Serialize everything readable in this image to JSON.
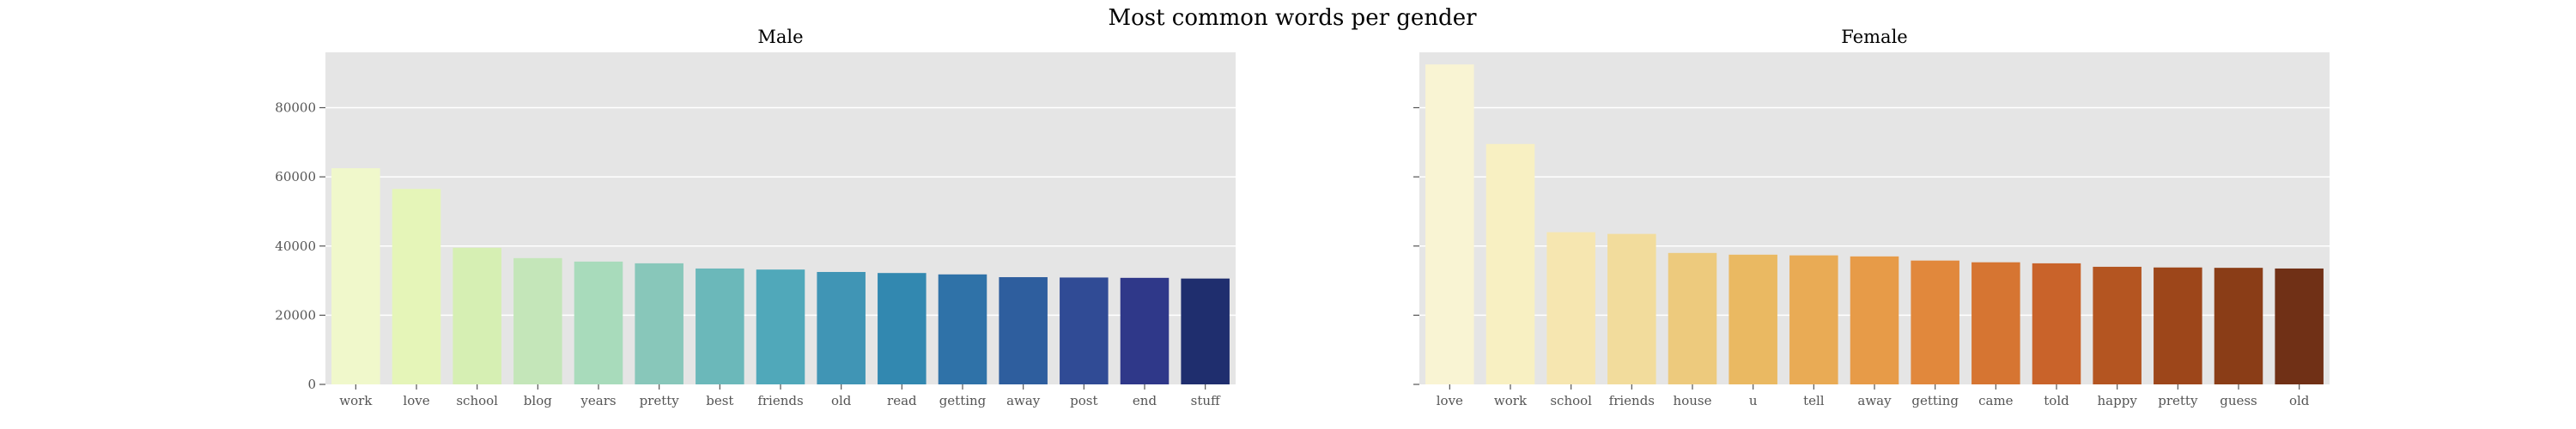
{
  "figure": {
    "suptitle": "Most common words per gender"
  },
  "chart_data": [
    {
      "type": "bar",
      "title": "Male",
      "xlabel": "",
      "ylabel": "",
      "ylim": [
        0,
        96000
      ],
      "yticks": [
        0,
        20000,
        40000,
        60000,
        80000
      ],
      "grid": true,
      "palette": "YlGnBu",
      "categories": [
        "work",
        "love",
        "school",
        "blog",
        "years",
        "pretty",
        "best",
        "friends",
        "old",
        "read",
        "getting",
        "away",
        "post",
        "end",
        "stuff"
      ],
      "values": [
        62500,
        56500,
        39500,
        36500,
        35500,
        35000,
        33500,
        33200,
        32500,
        32200,
        31800,
        31000,
        30900,
        30800,
        30600
      ],
      "colors": [
        "#f0f8cb",
        "#e5f5b8",
        "#d6efb3",
        "#c4e6b9",
        "#a8dbbb",
        "#88c7ba",
        "#6bb8ba",
        "#50a8ba",
        "#4095b5",
        "#3288b0",
        "#2f72a8",
        "#2e5e9e",
        "#304b95",
        "#2f3889",
        "#1f2e6e"
      ]
    },
    {
      "type": "bar",
      "title": "Female",
      "xlabel": "",
      "ylabel": "",
      "ylim": [
        0,
        96000
      ],
      "yticks": [
        0,
        20000,
        40000,
        60000,
        80000
      ],
      "grid": true,
      "palette": "YlOrBr",
      "categories": [
        "love",
        "work",
        "school",
        "friends",
        "house",
        "u",
        "tell",
        "away",
        "getting",
        "came",
        "told",
        "happy",
        "pretty",
        "guess",
        "old"
      ],
      "values": [
        92500,
        69500,
        44000,
        43500,
        38000,
        37500,
        37300,
        37000,
        35800,
        35300,
        35000,
        34000,
        33800,
        33700,
        33500
      ],
      "colors": [
        "#f9f4d3",
        "#f8f0c2",
        "#f6e6b0",
        "#f2dc9c",
        "#edca7d",
        "#eab962",
        "#e9ab55",
        "#e79b48",
        "#e1883c",
        "#d67532",
        "#c9632a",
        "#b45521",
        "#9d461a",
        "#8a3d17",
        "#703016"
      ]
    }
  ]
}
